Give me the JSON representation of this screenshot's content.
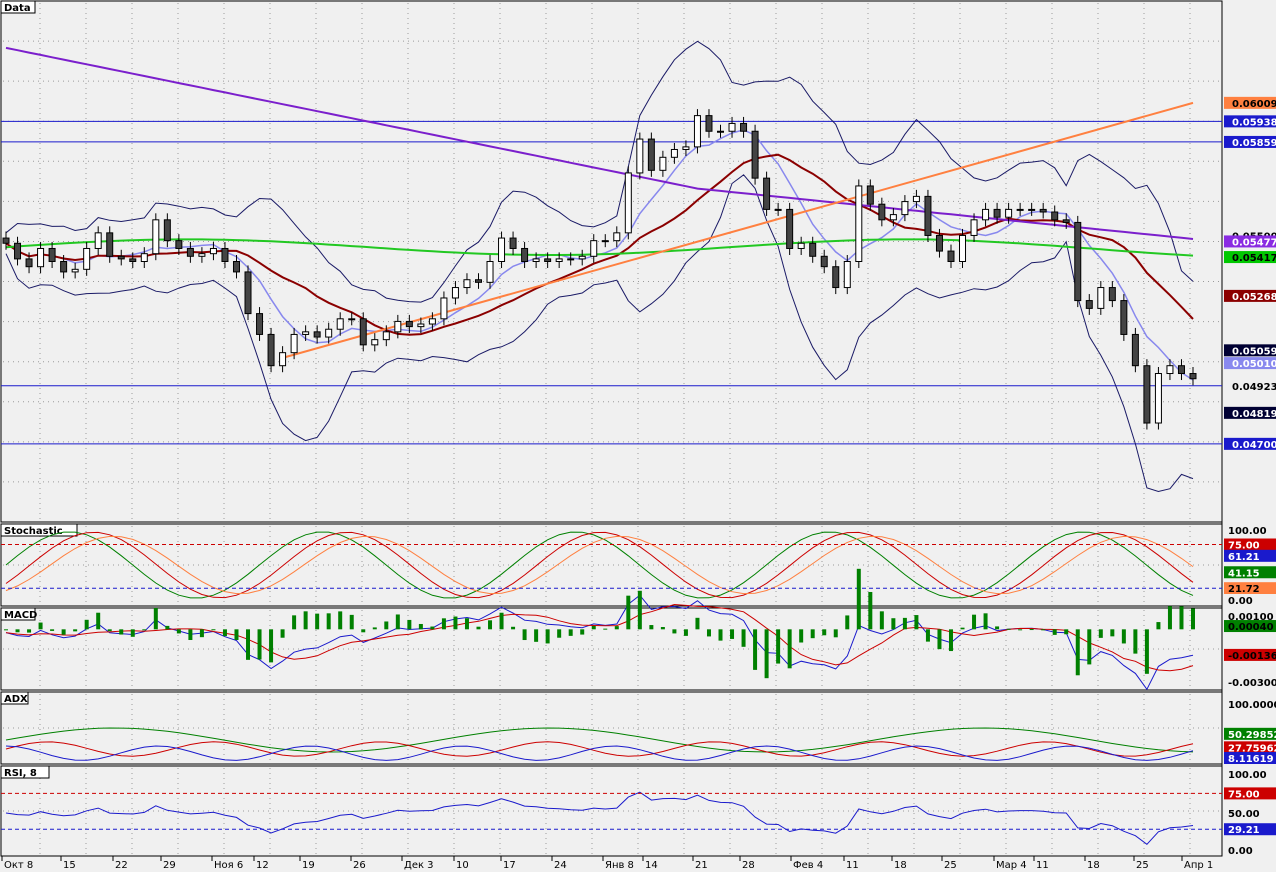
{
  "chart_data": {
    "type": "candlestick",
    "panels": [
      {
        "id": "price",
        "title": "Data",
        "ylim": [
          0.044,
          0.064
        ],
        "horizontal_lines": [
          0.05938,
          0.05859,
          0.04923,
          0.047
        ],
        "price_tags": [
          {
            "value": 0.05938,
            "text": "0.05938",
            "bg": "#1a1acc",
            "fg": "#ffffff"
          },
          {
            "value": 0.06009,
            "text": "0.06009",
            "bg": "#ff8040",
            "fg": "#000000"
          },
          {
            "value": 0.05859,
            "text": "0.05859",
            "bg": "#1a1acc",
            "fg": "#ffffff"
          },
          {
            "value": 0.055,
            "text": "0.05500",
            "bg": "#f0f0f0",
            "fg": "#000000"
          },
          {
            "value": 0.05477,
            "text": "0.05477",
            "bg": "#8a2be2",
            "fg": "#ffffff"
          },
          {
            "value": 0.05417,
            "text": "0.05417",
            "bg": "#00c800",
            "fg": "#000000"
          },
          {
            "value": 0.05268,
            "text": "0.05268",
            "bg": "#8b0000",
            "fg": "#ffffff"
          },
          {
            "value": 0.05059,
            "text": "0.05059",
            "bg": "#000033",
            "fg": "#ffffff"
          },
          {
            "value": 0.0501,
            "text": "0.05010",
            "bg": "#8888ee",
            "fg": "#ffffff"
          },
          {
            "value": 0.04923,
            "text": "0.04923",
            "bg": "#f0f0f0",
            "fg": "#000000"
          },
          {
            "value": 0.04819,
            "text": "0.04819",
            "bg": "#000033",
            "fg": "#ffffff"
          },
          {
            "value": 0.047,
            "text": "0.04700",
            "bg": "#1a1acc",
            "fg": "#ffffff"
          }
        ]
      },
      {
        "id": "stochastic",
        "title": "Stochastic",
        "ylim": [
          0,
          100
        ],
        "levels": [
          75,
          21.72
        ],
        "tags": [
          {
            "value": 100,
            "text": "100.00",
            "bg": "#f0f0f0",
            "fg": "#000000"
          },
          {
            "value": 75,
            "text": "75.00",
            "bg": "#cc0000",
            "fg": "#ffffff"
          },
          {
            "value": 61.21,
            "text": "61.21",
            "bg": "#1a1acc",
            "fg": "#ffffff"
          },
          {
            "value": 41.15,
            "text": "41.15",
            "bg": "#008000",
            "fg": "#ffffff"
          },
          {
            "value": 21.72,
            "text": "21.72",
            "bg": "#ff8040",
            "fg": "#000000"
          },
          {
            "value": 0,
            "text": "0.00",
            "bg": "#f0f0f0",
            "fg": "#000000"
          }
        ]
      },
      {
        "id": "macd",
        "title": "MACD",
        "ylim": [
          -0.0035,
          0.0015
        ],
        "tags": [
          {
            "value": 0.001,
            "text": "0.00100",
            "bg": "#f0f0f0",
            "fg": "#000000"
          },
          {
            "value": 0.0004,
            "text": "0.00040",
            "bg": "#008000",
            "fg": "#000000"
          },
          {
            "value": -0.00136,
            "text": "-0.00136",
            "bg": "#cc0000",
            "fg": "#000000"
          },
          {
            "value": -0.003,
            "text": "-0.00300",
            "bg": "#f0f0f0",
            "fg": "#000000"
          }
        ]
      },
      {
        "id": "adx",
        "title": "ADX",
        "ylim": [
          0,
          120
        ],
        "tags": [
          {
            "value": 100,
            "text": "100.0000",
            "bg": "#f0f0f0",
            "fg": "#000000"
          },
          {
            "value": 50.29852,
            "text": "50.29852",
            "bg": "#008000",
            "fg": "#ffffff"
          },
          {
            "value": 27.75962,
            "text": "27.75962",
            "bg": "#cc0000",
            "fg": "#ffffff"
          },
          {
            "value": 8.11619,
            "text": "8.11619",
            "bg": "#1a1acc",
            "fg": "#ffffff"
          }
        ]
      },
      {
        "id": "rsi",
        "title": "RSI, 8",
        "ylim": [
          -5,
          110
        ],
        "levels": [
          75,
          29.21
        ],
        "tags": [
          {
            "value": 100,
            "text": "100.00",
            "bg": "#f0f0f0",
            "fg": "#000000"
          },
          {
            "value": 75,
            "text": "75.00",
            "bg": "#cc0000",
            "fg": "#ffffff"
          },
          {
            "value": 50,
            "text": "50.00",
            "bg": "#f0f0f0",
            "fg": "#000000"
          },
          {
            "value": 29.21,
            "text": "29.21",
            "bg": "#1a1acc",
            "fg": "#ffffff"
          },
          {
            "value": 0,
            "text": "0.00",
            "bg": "#f0f0f0",
            "fg": "#000000"
          }
        ]
      }
    ],
    "x_labels": [
      "Окт 8",
      "15",
      "22",
      "29",
      "Ноя 6",
      "12",
      "19",
      "26",
      "Дек 3",
      "10",
      "17",
      "24",
      "Янв 8",
      "14",
      "21",
      "28",
      "Фев 4",
      "11",
      "18",
      "25",
      "Мар 4",
      "11",
      "18",
      "25",
      "Апр 1"
    ],
    "candles_close": [
      0.0547,
      0.0541,
      0.0538,
      0.0545,
      0.054,
      0.0536,
      0.0537,
      0.0545,
      0.0551,
      0.0542,
      0.0541,
      0.054,
      0.0543,
      0.0556,
      0.0548,
      0.0545,
      0.0542,
      0.0543,
      0.0545,
      0.054,
      0.0536,
      0.052,
      0.0512,
      0.05,
      0.0505,
      0.0512,
      0.0513,
      0.0511,
      0.0514,
      0.0518,
      0.0518,
      0.0508,
      0.051,
      0.0513,
      0.0517,
      0.0515,
      0.0516,
      0.0518,
      0.0526,
      0.053,
      0.0533,
      0.0532,
      0.054,
      0.0549,
      0.0545,
      0.054,
      0.0541,
      0.054,
      0.0541,
      0.0541,
      0.0542,
      0.0548,
      0.0548,
      0.0551,
      0.0574,
      0.0587,
      0.0575,
      0.058,
      0.0583,
      0.0584,
      0.0596,
      0.059,
      0.059,
      0.0593,
      0.059,
      0.0572,
      0.056,
      0.056,
      0.0545,
      0.0547,
      0.0542,
      0.0538,
      0.053,
      0.054,
      0.0569,
      0.0562,
      0.0556,
      0.0558,
      0.0563,
      0.0565,
      0.055,
      0.0544,
      0.054,
      0.055,
      0.0556,
      0.056,
      0.0557,
      0.056,
      0.056,
      0.056,
      0.0559,
      0.0556,
      0.0555,
      0.0525,
      0.0522,
      0.053,
      0.0525,
      0.0512,
      0.05,
      0.0478,
      0.0497,
      0.05,
      0.0497,
      0.0495
    ],
    "series": [
      {
        "name": "",
        "color": "#8b0000"
      },
      {
        "name": "",
        "color": "#7b1fcc"
      },
      {
        "name": "",
        "color": "#22c822"
      },
      {
        "name": "",
        "color": "#8888ee"
      }
    ]
  }
}
